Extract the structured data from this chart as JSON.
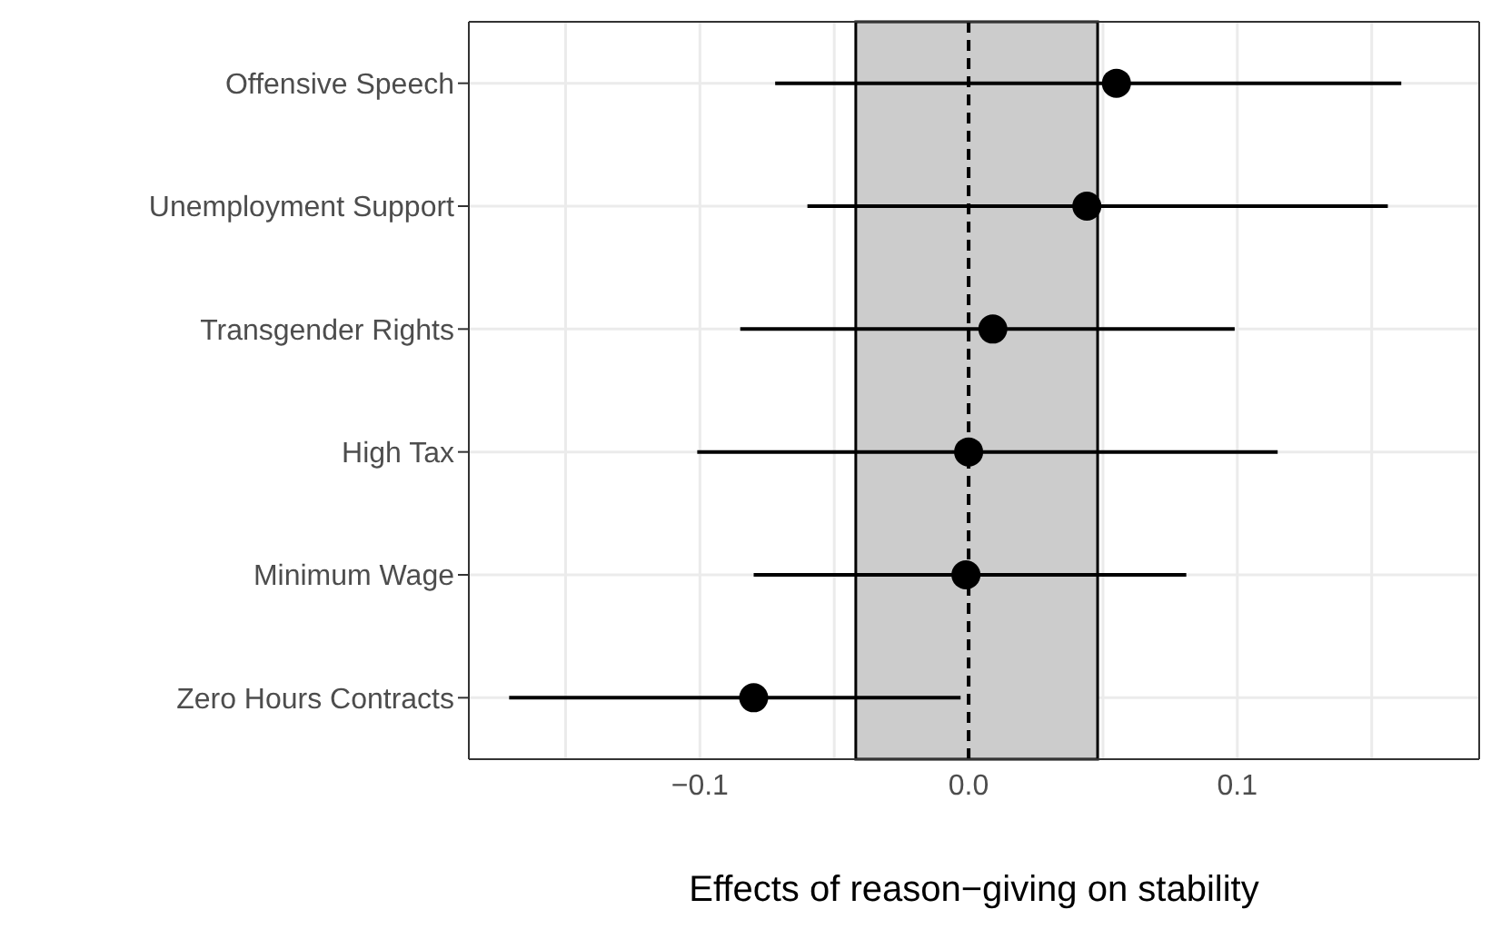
{
  "chart_data": {
    "type": "scatter",
    "orientation": "horizontal",
    "xlabel": "Effects of reason−giving on stability",
    "categories": [
      "Offensive Speech",
      "Unemployment Support",
      "Transgender Rights",
      "High Tax",
      "Minimum Wage",
      "Zero Hours Contracts"
    ],
    "values": [
      0.055,
      0.044,
      0.009,
      0.0,
      -0.001,
      -0.08
    ],
    "errors": [
      [
        -0.072,
        0.161
      ],
      [
        -0.06,
        0.156
      ],
      [
        -0.085,
        0.099
      ],
      [
        -0.101,
        0.115
      ],
      [
        -0.08,
        0.081
      ],
      [
        -0.171,
        -0.003
      ]
    ],
    "color": "#000000",
    "marker": "circle",
    "xlim": [
      -0.186,
      0.19
    ],
    "xticks": [
      {
        "value": -0.15,
        "label": null
      },
      {
        "value": -0.1,
        "label": "−0.1"
      },
      {
        "value": -0.05,
        "label": null
      },
      {
        "value": 0,
        "label": "0.0"
      },
      {
        "value": 0.05,
        "label": null
      },
      {
        "value": 0.1,
        "label": "0.1"
      },
      {
        "value": 0.15,
        "label": null
      }
    ],
    "bands": [
      {
        "axis": "x",
        "from": -0.042,
        "to": 0.048,
        "color": "#cccccc"
      }
    ],
    "ref_lines": [
      {
        "axis": "x",
        "value": 0,
        "line_style": "dashed",
        "color": "#000000"
      }
    ],
    "grid": true
  }
}
